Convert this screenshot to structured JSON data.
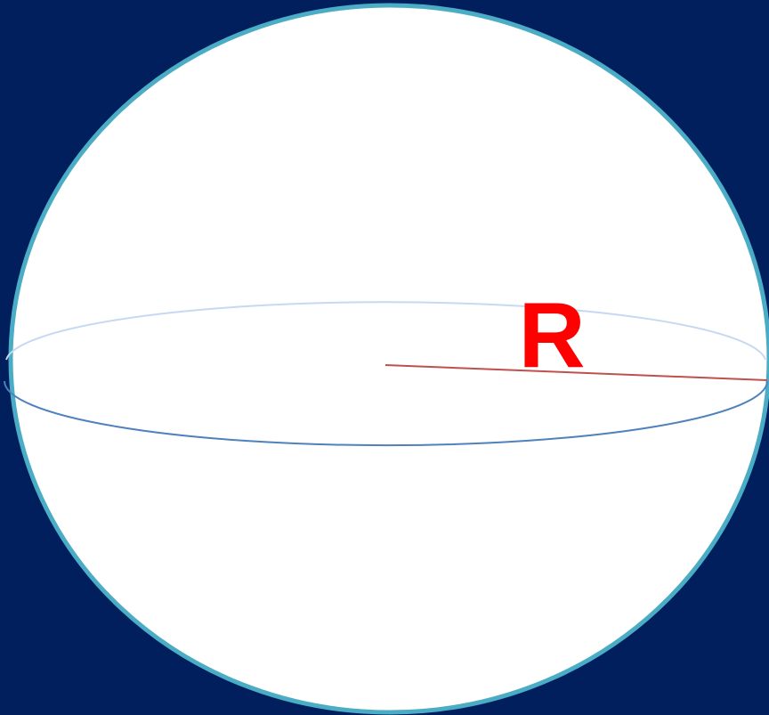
{
  "diagram": {
    "radius_label": "R"
  }
}
